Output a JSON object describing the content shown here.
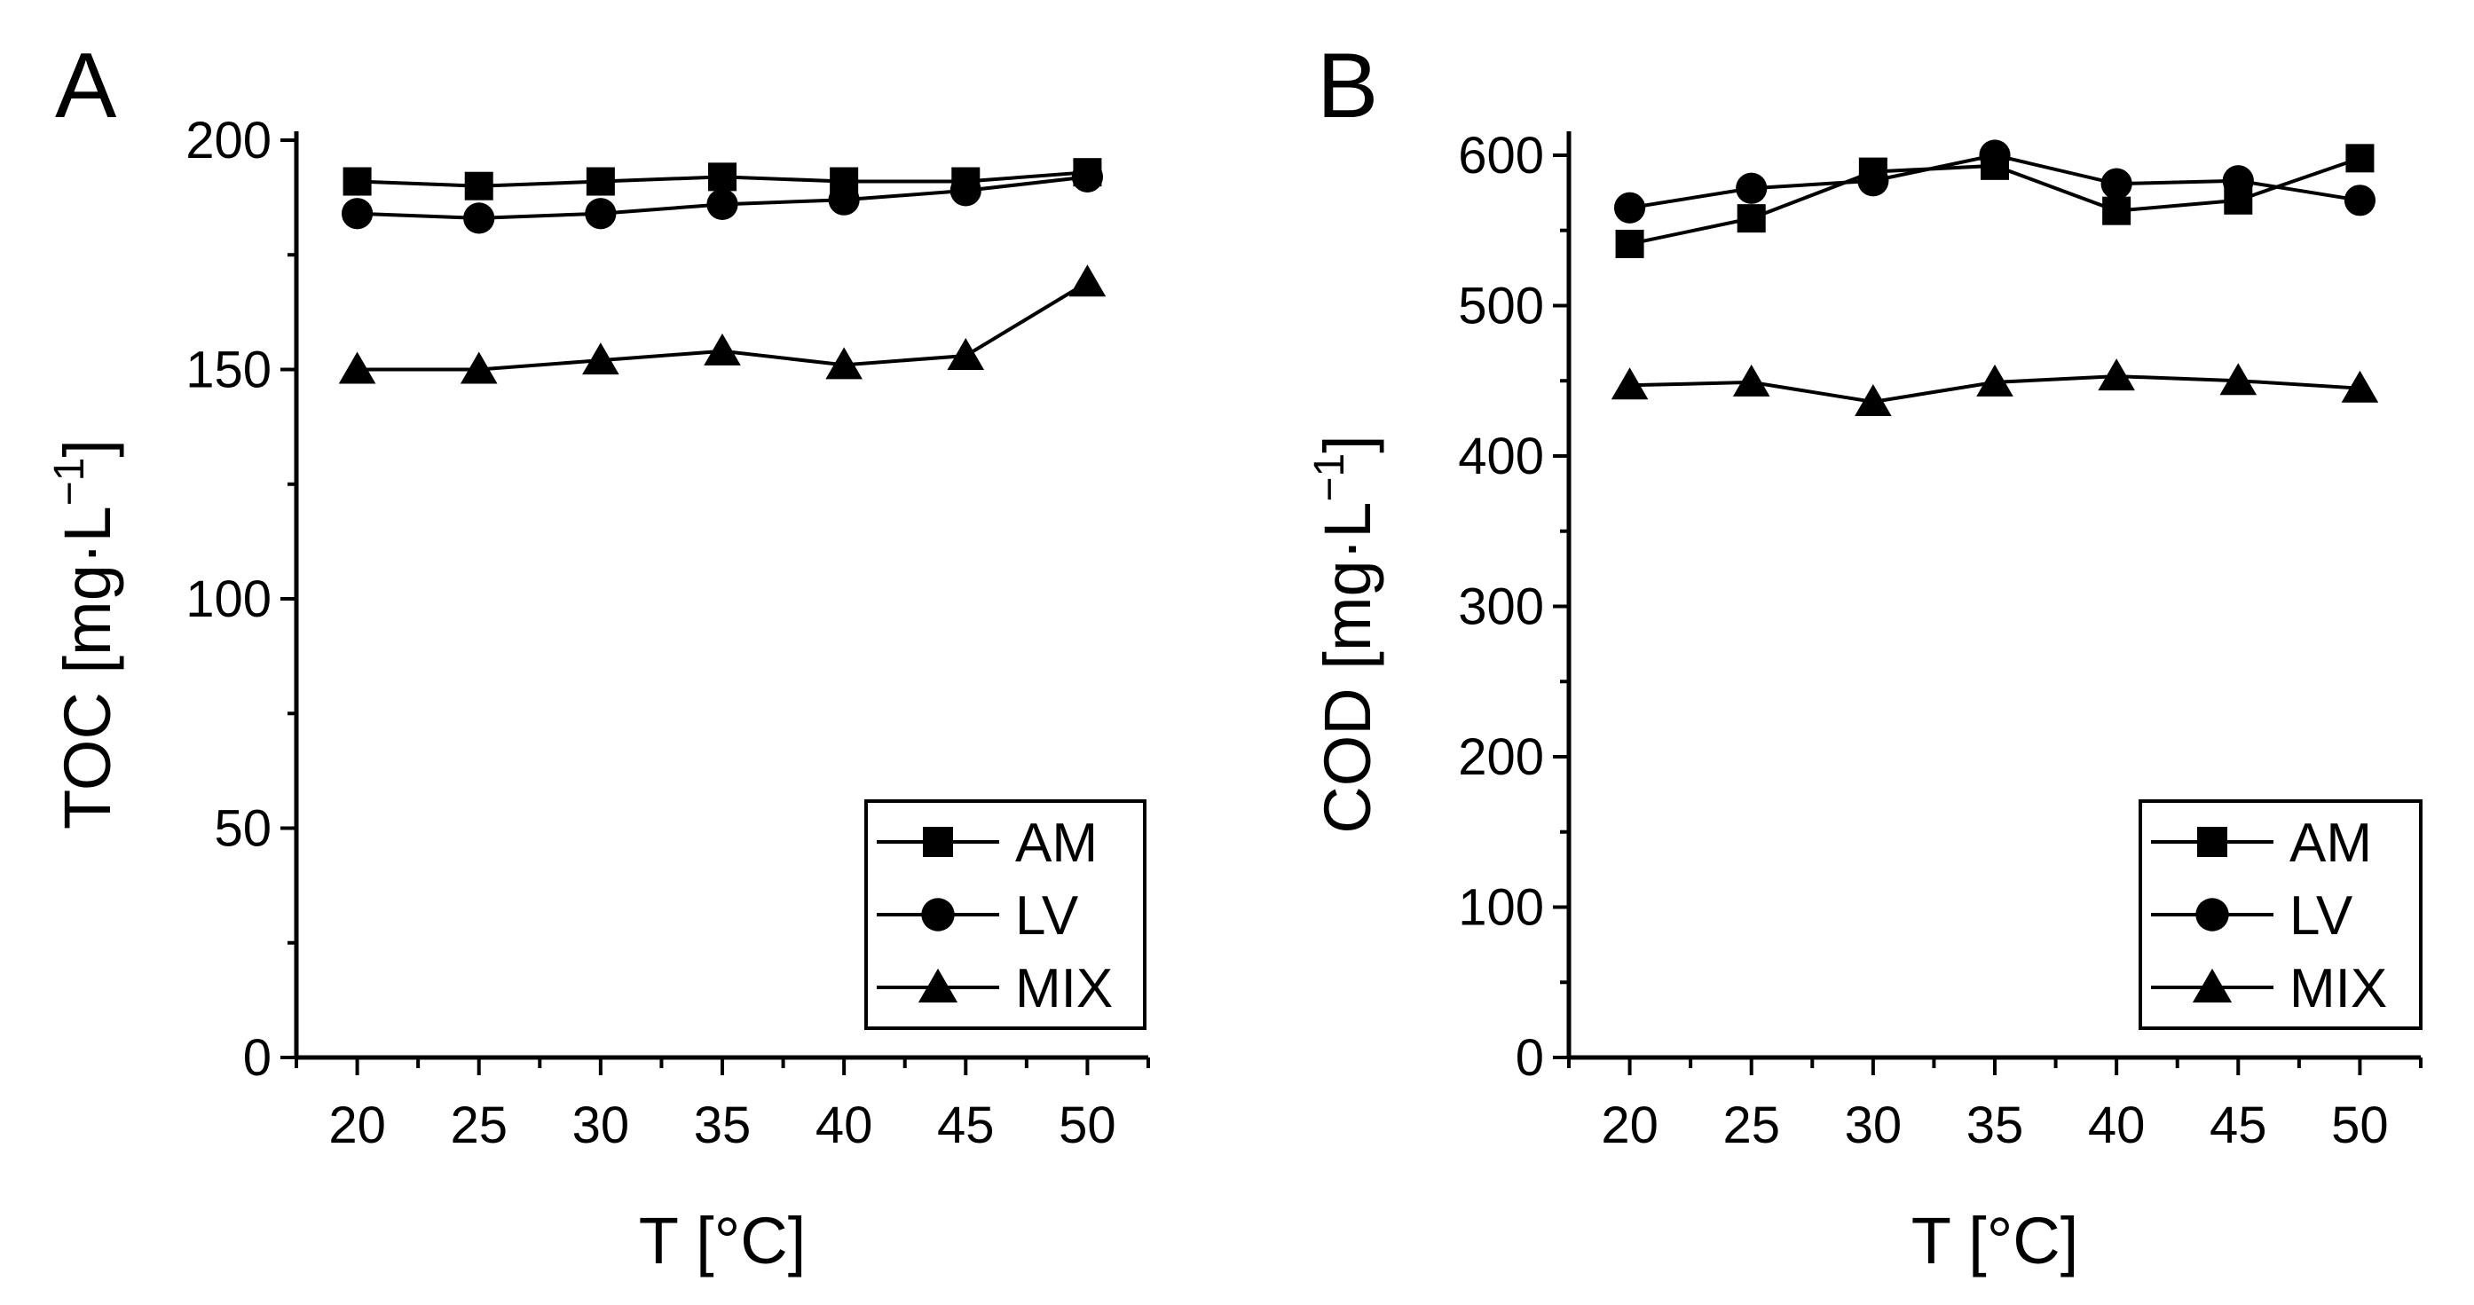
{
  "chart_data": [
    {
      "panel": "A",
      "type": "line",
      "xlabel": "T [°C]",
      "ylabel": "TOC [mg·L",
      "ylabel_sup": "−1",
      "ylabel_end": "]",
      "x": [
        20,
        25,
        30,
        35,
        40,
        45,
        50
      ],
      "xlim": [
        17.5,
        52.5
      ],
      "ylim": [
        0,
        200
      ],
      "xticks": [
        20,
        25,
        30,
        35,
        40,
        45,
        50
      ],
      "yticks": [
        0,
        50,
        100,
        150,
        200
      ],
      "legend_position": "bottom-right",
      "series": [
        {
          "name": "AM",
          "marker": "square",
          "values": [
            191,
            190,
            191,
            192,
            191,
            191,
            193
          ]
        },
        {
          "name": "LV",
          "marker": "circle",
          "values": [
            184,
            183,
            184,
            186,
            187,
            189,
            192
          ]
        },
        {
          "name": "MIX",
          "marker": "triangle",
          "values": [
            150,
            150,
            152,
            154,
            151,
            153,
            169
          ]
        }
      ]
    },
    {
      "panel": "B",
      "type": "line",
      "xlabel": "T [°C]",
      "ylabel": "COD [mg·L",
      "ylabel_sup": "−1",
      "ylabel_end": "]",
      "x": [
        20,
        25,
        30,
        35,
        40,
        45,
        50
      ],
      "xlim": [
        17.5,
        52.5
      ],
      "ylim": [
        0,
        610
      ],
      "xticks": [
        20,
        25,
        30,
        35,
        40,
        45,
        50
      ],
      "yticks": [
        0,
        100,
        200,
        300,
        400,
        500,
        600
      ],
      "legend_position": "bottom-right",
      "series": [
        {
          "name": "AM",
          "marker": "square",
          "values": [
            541,
            558,
            589,
            593,
            563,
            570,
            598
          ]
        },
        {
          "name": "LV",
          "marker": "circle",
          "values": [
            565,
            578,
            583,
            600,
            581,
            583,
            570
          ]
        },
        {
          "name": "MIX",
          "marker": "triangle",
          "values": [
            447,
            449,
            436,
            449,
            453,
            450,
            445
          ]
        }
      ]
    }
  ]
}
